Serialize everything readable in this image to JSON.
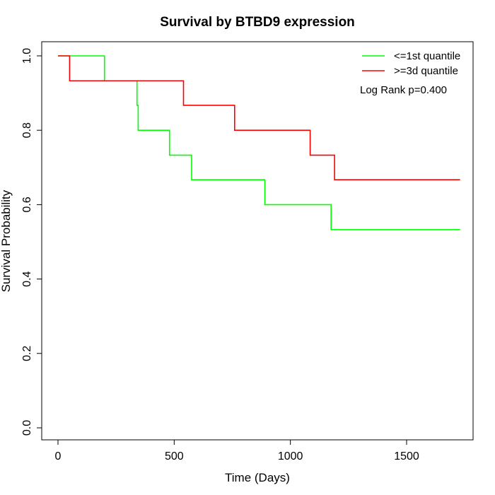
{
  "chart_data": {
    "type": "line",
    "title": "Survival by BTBD9 expression",
    "xlabel": "Time (Days)",
    "ylabel": "Survival Probability",
    "xlim": [
      0,
      1750
    ],
    "ylim": [
      0,
      1.0
    ],
    "x_ticks": [
      0,
      500,
      1000,
      1500
    ],
    "y_ticks": [
      0.0,
      0.2,
      0.4,
      0.6,
      0.8,
      1.0
    ],
    "x_tick_labels": [
      "0",
      "500",
      "1000",
      "1500"
    ],
    "y_tick_labels": [
      "0.0",
      "0.2",
      "0.4",
      "0.6",
      "0.8",
      "1.0"
    ],
    "grid": false,
    "legend_position": "top-right",
    "annotation": "Log Rank p=0.400",
    "series": [
      {
        "name": "<=1st quantile",
        "color": "#00ff00",
        "step_x": [
          0,
          200,
          340,
          345,
          350,
          480,
          575,
          890,
          1175,
          1730
        ],
        "step_y": [
          1.0,
          0.933,
          0.867,
          0.8,
          0.8,
          0.733,
          0.667,
          0.6,
          0.533,
          0.533
        ]
      },
      {
        "name": ">=3d quantile",
        "color": "#ff0000",
        "step_x": [
          0,
          50,
          540,
          760,
          1085,
          1190,
          1730
        ],
        "step_y": [
          1.0,
          0.933,
          0.867,
          0.8,
          0.733,
          0.667,
          0.667
        ]
      }
    ]
  }
}
